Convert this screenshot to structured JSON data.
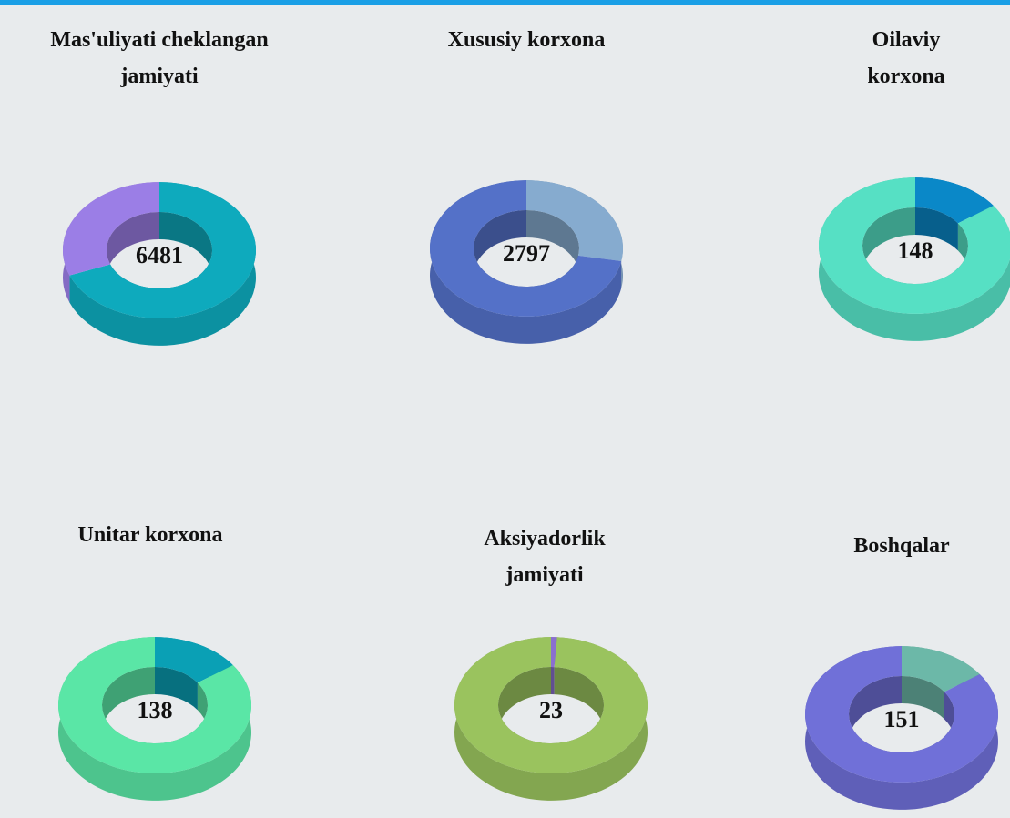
{
  "chart_data": [
    {
      "type": "donut",
      "title": "Mas'uliyati cheklangan jamiyati",
      "total": 6481,
      "categories": [
        null,
        null
      ],
      "values": [
        69,
        31
      ],
      "colors": [
        "#0eaabd",
        "#9b7ee6"
      ]
    },
    {
      "type": "donut",
      "title": "Xususiy korxona",
      "total": 2797,
      "categories": [
        null,
        null
      ],
      "values": [
        28,
        72
      ],
      "colors": [
        "#86abcf",
        "#5471c8"
      ]
    },
    {
      "type": "donut",
      "title": "Oilaviy korxona",
      "total": 148,
      "categories": [
        null,
        null
      ],
      "values": [
        15,
        85
      ],
      "colors": [
        "#0a88c8",
        "#56e0c4"
      ]
    },
    {
      "type": "donut",
      "title": "Unitar korxona",
      "total": 138,
      "categories": [
        null,
        null
      ],
      "values": [
        15,
        85
      ],
      "colors": [
        "#0aa0b5",
        "#5ae6a6"
      ]
    },
    {
      "type": "donut",
      "title": "Aksiyadorlik jamiyati",
      "total": 23,
      "categories": [
        null,
        null
      ],
      "values": [
        1,
        99
      ],
      "colors": [
        "#8a6fd0",
        "#9ac35e"
      ]
    },
    {
      "type": "donut",
      "title": "Boshqalar",
      "total": 151,
      "categories": [
        null,
        null
      ],
      "values": [
        15,
        85
      ],
      "colors": [
        "#6cb8a8",
        "#7070d8"
      ]
    }
  ]
}
